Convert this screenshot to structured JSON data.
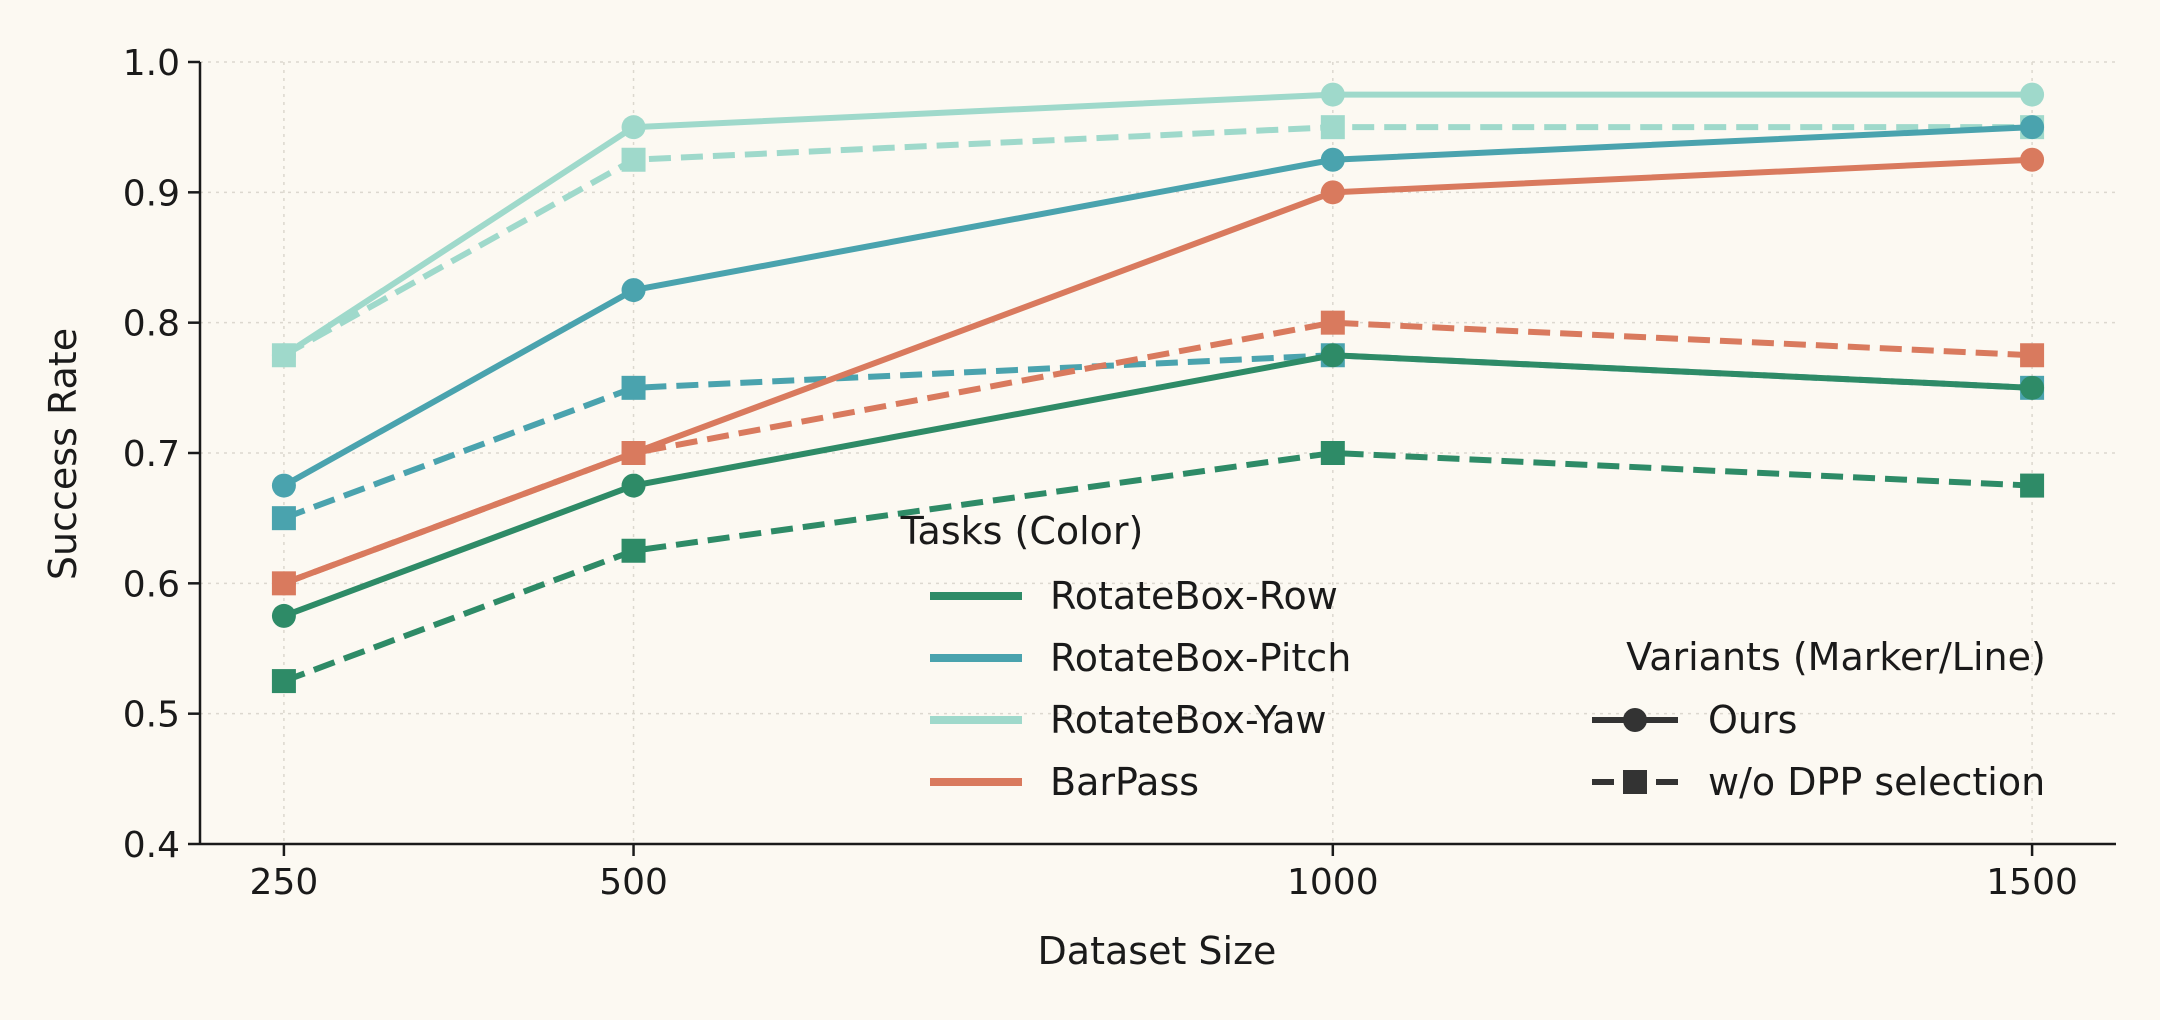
{
  "chart_data": {
    "type": "line",
    "xlabel": "Dataset Size",
    "ylabel": "Success Rate",
    "x": [
      250,
      500,
      1000,
      1500
    ],
    "x_ticks": [
      "250",
      "500",
      "1000",
      "1500"
    ],
    "xlim": [
      190,
      1560
    ],
    "ylim": [
      0.4,
      1.0
    ],
    "y_ticks": [
      "0.4",
      "0.5",
      "0.6",
      "0.7",
      "0.8",
      "0.9",
      "1.0"
    ],
    "grid": true,
    "tasks_legend": {
      "title": "Tasks (Color)",
      "placement": "lower-center",
      "entries": [
        {
          "label": "RotateBox-Row",
          "color": "#2e8b67"
        },
        {
          "label": "RotateBox-Pitch",
          "color": "#4aa3ae"
        },
        {
          "label": "RotateBox-Yaw",
          "color": "#9fd9cb"
        },
        {
          "label": "BarPass",
          "color": "#d97a5e"
        }
      ]
    },
    "variants_legend": {
      "title": "Variants (Marker/Line)",
      "placement": "lower-right",
      "entries": [
        {
          "label": "Ours",
          "marker": "circle",
          "line": "solid"
        },
        {
          "label": "w/o DPP selection",
          "marker": "square",
          "line": "dashed"
        }
      ]
    },
    "series": [
      {
        "task": "RotateBox-Row",
        "variant": "Ours",
        "color": "#2e8b67",
        "values": [
          0.575,
          0.675,
          0.775,
          0.75
        ]
      },
      {
        "task": "RotateBox-Row",
        "variant": "w/o DPP selection",
        "color": "#2e8b67",
        "values": [
          0.525,
          0.625,
          0.7,
          0.675
        ]
      },
      {
        "task": "RotateBox-Pitch",
        "variant": "Ours",
        "color": "#4aa3ae",
        "values": [
          0.675,
          0.825,
          0.925,
          0.95
        ]
      },
      {
        "task": "RotateBox-Pitch",
        "variant": "w/o DPP selection",
        "color": "#4aa3ae",
        "values": [
          0.65,
          0.75,
          0.775,
          0.75
        ]
      },
      {
        "task": "RotateBox-Yaw",
        "variant": "Ours",
        "color": "#9fd9cb",
        "values": [
          0.775,
          0.95,
          0.975,
          0.975
        ]
      },
      {
        "task": "RotateBox-Yaw",
        "variant": "w/o DPP selection",
        "color": "#9fd9cb",
        "values": [
          0.775,
          0.925,
          0.95,
          0.95
        ]
      },
      {
        "task": "BarPass",
        "variant": "Ours",
        "color": "#d97a5e",
        "values": [
          0.6,
          0.7,
          0.9,
          0.925
        ]
      },
      {
        "task": "BarPass",
        "variant": "w/o DPP selection",
        "color": "#d97a5e",
        "values": [
          0.6,
          0.7,
          0.8,
          0.775
        ]
      }
    ]
  }
}
